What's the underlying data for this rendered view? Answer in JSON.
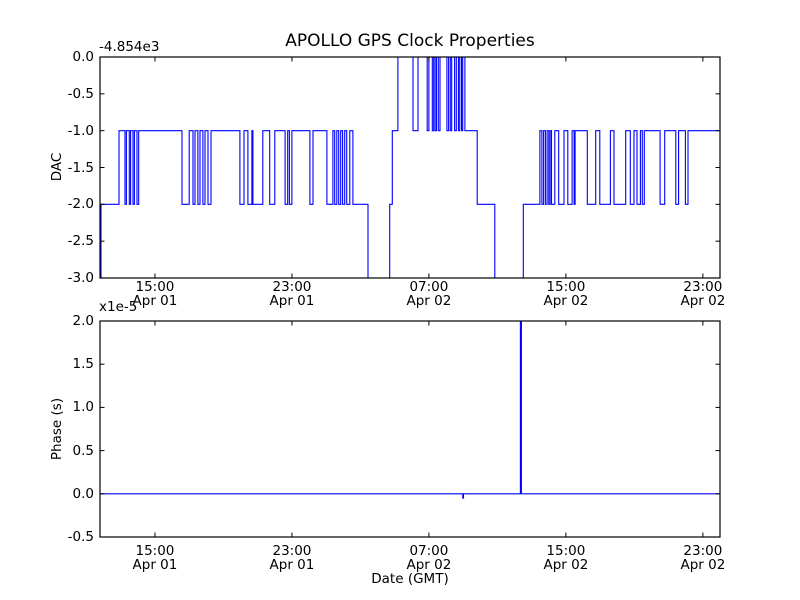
{
  "figure": {
    "title": "APOLLO GPS Clock Properties",
    "xlabel": "Date (GMT)",
    "background_color": "#ffffff",
    "line_color": "#0000ff",
    "frame_color": "#000000"
  },
  "xaxis": {
    "label": "Date (GMT)",
    "range_hours_from_apr01_0000": [
      11.79,
      48.0
    ],
    "ticks": [
      {
        "t": 15,
        "time": "15:00",
        "date": "Apr 01"
      },
      {
        "t": 23,
        "time": "23:00",
        "date": "Apr 01"
      },
      {
        "t": 31,
        "time": "07:00",
        "date": "Apr 02"
      },
      {
        "t": 39,
        "time": "15:00",
        "date": "Apr 02"
      },
      {
        "t": 47,
        "time": "23:00",
        "date": "Apr 02"
      }
    ]
  },
  "chart_data": [
    {
      "type": "line",
      "name": "dac",
      "title": "APOLLO GPS Clock Properties",
      "ylabel": "DAC",
      "y_offset_label": "-4.854e3",
      "ylim": [
        -3.0,
        0.0
      ],
      "yticks": [
        "0.0",
        "-0.5",
        "-1.0",
        "-1.5",
        "-2.0",
        "-2.5",
        "-3.0"
      ],
      "x_unit": "hours since Apr 01 00:00 GMT",
      "grid": false,
      "legend": "none",
      "steps": [
        [
          11.79,
          -3.2
        ],
        [
          11.85,
          -2
        ],
        [
          12.9,
          -1
        ],
        [
          13.25,
          -2
        ],
        [
          13.33,
          -1
        ],
        [
          13.5,
          -2
        ],
        [
          13.58,
          -1
        ],
        [
          13.72,
          -2
        ],
        [
          13.8,
          -1
        ],
        [
          13.95,
          -2
        ],
        [
          14.05,
          -1
        ],
        [
          16.58,
          -2
        ],
        [
          17.0,
          -1
        ],
        [
          17.22,
          -2
        ],
        [
          17.34,
          -1
        ],
        [
          17.51,
          -2
        ],
        [
          17.63,
          -1
        ],
        [
          17.8,
          -2
        ],
        [
          17.92,
          -1
        ],
        [
          18.1,
          -2
        ],
        [
          18.27,
          -1
        ],
        [
          19.96,
          -2
        ],
        [
          20.2,
          -1
        ],
        [
          20.43,
          -2
        ],
        [
          20.66,
          -1
        ],
        [
          20.72,
          -2
        ],
        [
          21.3,
          -1
        ],
        [
          21.7,
          -2
        ],
        [
          22.0,
          -1
        ],
        [
          22.6,
          -2
        ],
        [
          22.75,
          -1
        ],
        [
          22.85,
          -2
        ],
        [
          23.0,
          -1
        ],
        [
          24.05,
          -2
        ],
        [
          24.23,
          -1
        ],
        [
          25.04,
          -2
        ],
        [
          25.39,
          -1
        ],
        [
          25.5,
          -2
        ],
        [
          25.62,
          -1
        ],
        [
          25.73,
          -2
        ],
        [
          25.85,
          -1
        ],
        [
          25.96,
          -2
        ],
        [
          26.08,
          -1
        ],
        [
          26.2,
          -2
        ],
        [
          26.38,
          -1
        ],
        [
          26.56,
          -2
        ],
        [
          27.44,
          -3.2
        ],
        [
          28.71,
          -2
        ],
        [
          28.86,
          -1
        ],
        [
          29.19,
          0
        ],
        [
          30.07,
          -1
        ],
        [
          30.36,
          0
        ],
        [
          30.9,
          -1
        ],
        [
          31.0,
          0
        ],
        [
          31.2,
          -1
        ],
        [
          31.28,
          0
        ],
        [
          31.36,
          -1
        ],
        [
          31.44,
          0
        ],
        [
          31.55,
          -1
        ],
        [
          31.65,
          0
        ],
        [
          32.05,
          -1
        ],
        [
          32.15,
          0
        ],
        [
          32.25,
          -1
        ],
        [
          32.33,
          0
        ],
        [
          32.5,
          -1
        ],
        [
          32.6,
          0
        ],
        [
          32.72,
          -1
        ],
        [
          32.8,
          0
        ],
        [
          32.9,
          -1
        ],
        [
          32.97,
          0
        ],
        [
          33.1,
          -1
        ],
        [
          33.82,
          -2
        ],
        [
          34.85,
          -3.2
        ],
        [
          36.51,
          -2
        ],
        [
          37.48,
          -1
        ],
        [
          37.6,
          -2
        ],
        [
          37.7,
          -1
        ],
        [
          37.8,
          -2
        ],
        [
          37.9,
          -1
        ],
        [
          38.0,
          -2
        ],
        [
          38.08,
          -1
        ],
        [
          38.16,
          -2
        ],
        [
          38.35,
          -1
        ],
        [
          38.58,
          -2
        ],
        [
          38.89,
          -1
        ],
        [
          39.11,
          -2
        ],
        [
          39.36,
          -1
        ],
        [
          39.48,
          -2
        ],
        [
          39.54,
          -1
        ],
        [
          40.25,
          -2
        ],
        [
          40.74,
          -1
        ],
        [
          40.98,
          -2
        ],
        [
          41.6,
          -1
        ],
        [
          41.81,
          -2
        ],
        [
          42.49,
          -1
        ],
        [
          42.76,
          -2
        ],
        [
          42.98,
          -1
        ],
        [
          43.15,
          -2
        ],
        [
          43.35,
          -1
        ],
        [
          43.46,
          -2
        ],
        [
          43.58,
          -1
        ],
        [
          44.5,
          -2
        ],
        [
          44.77,
          -1
        ],
        [
          45.42,
          -2
        ],
        [
          45.58,
          -1
        ],
        [
          45.98,
          -2
        ],
        [
          46.13,
          -1
        ],
        [
          48.0,
          -1
        ]
      ]
    },
    {
      "type": "line",
      "name": "phase",
      "ylabel": "Phase (s)",
      "y_multiplier_label": "x1e-5",
      "ylim": [
        -0.5,
        2.0
      ],
      "yticks": [
        "2.0",
        "1.5",
        "1.0",
        "0.5",
        "0.0",
        "-0.5"
      ],
      "x_unit": "hours since Apr 01 00:00 GMT",
      "y_unit": "1e-5 s",
      "grid": false,
      "legend": "none",
      "steps": [
        [
          11.79,
          0
        ],
        [
          32.98,
          -0.05
        ],
        [
          33.02,
          0
        ],
        [
          36.34,
          2.05
        ],
        [
          36.4,
          0
        ],
        [
          48.0,
          0
        ]
      ]
    }
  ]
}
